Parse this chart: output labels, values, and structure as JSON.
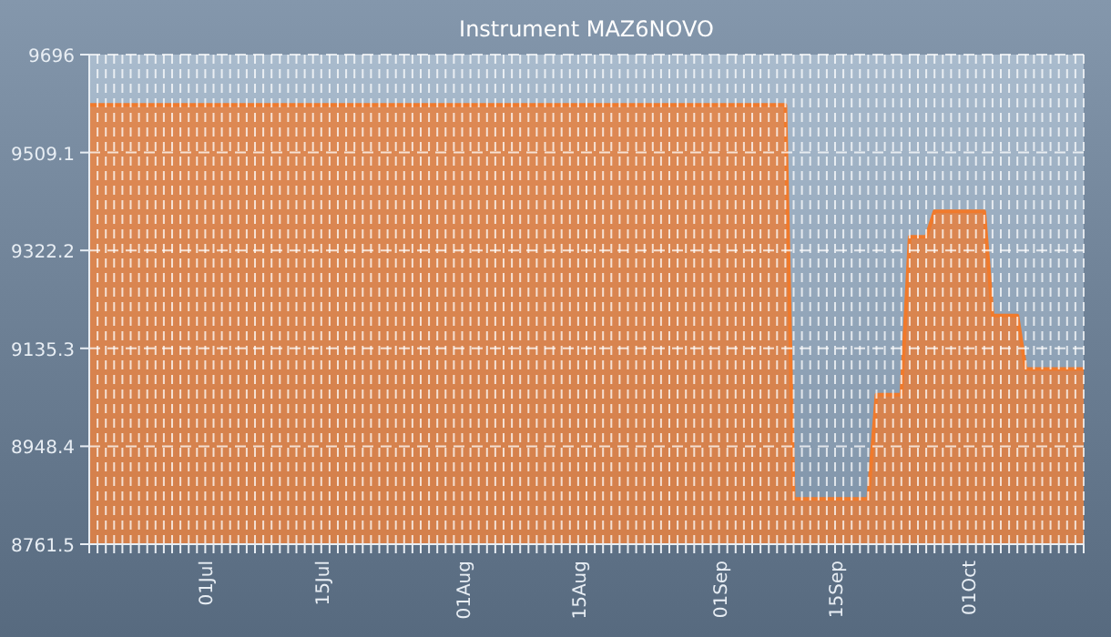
{
  "chart_data": {
    "type": "area",
    "title": "Instrument MAZ6NOVO",
    "x": [
      "--06-17",
      "--09-09",
      "--09-10",
      "--09-19",
      "--09-20",
      "--09-23",
      "--09-24",
      "--09-26",
      "--09-27",
      "--10-03",
      "--10-04",
      "--10-07",
      "--10-08",
      "--10-15"
    ],
    "series": [
      {
        "color": "#f07a2c",
        "values": [
          9600,
          9600,
          8848,
          8848,
          9047,
          9047,
          9348,
          9348,
          9397,
          9397,
          9198,
          9198,
          9096,
          9096
        ]
      }
    ],
    "xlim": [
      "--06-17",
      "--10-15"
    ],
    "ylim": [
      8761.5,
      9696
    ],
    "yticks": [
      8761.5,
      8948.4,
      9135.3,
      9322.2,
      9509.1,
      9696
    ],
    "grid": true,
    "xticks": [
      {
        "value": "--06-17",
        "label": null
      },
      {
        "value": "--06-18",
        "label": null
      },
      {
        "value": "--06-19",
        "label": null
      },
      {
        "value": "--06-20",
        "label": null
      },
      {
        "value": "--06-21",
        "label": null
      },
      {
        "value": "--06-22",
        "label": null
      },
      {
        "value": "--06-23",
        "label": null
      },
      {
        "value": "--06-24",
        "label": null
      },
      {
        "value": "--06-25",
        "label": null
      },
      {
        "value": "--06-26",
        "label": null
      },
      {
        "value": "--06-27",
        "label": null
      },
      {
        "value": "--06-28",
        "label": null
      },
      {
        "value": "--06-29",
        "label": null
      },
      {
        "value": "--06-30",
        "label": null
      },
      {
        "value": "--07-01",
        "label": "01Jul"
      },
      {
        "value": "--07-02",
        "label": null
      },
      {
        "value": "--07-03",
        "label": null
      },
      {
        "value": "--07-04",
        "label": null
      },
      {
        "value": "--07-05",
        "label": null
      },
      {
        "value": "--07-06",
        "label": null
      },
      {
        "value": "--07-07",
        "label": null
      },
      {
        "value": "--07-08",
        "label": null
      },
      {
        "value": "--07-09",
        "label": null
      },
      {
        "value": "--07-10",
        "label": null
      },
      {
        "value": "--07-11",
        "label": null
      },
      {
        "value": "--07-12",
        "label": null
      },
      {
        "value": "--07-13",
        "label": null
      },
      {
        "value": "--07-14",
        "label": null
      },
      {
        "value": "--07-15",
        "label": "15Jul"
      },
      {
        "value": "--07-16",
        "label": null
      },
      {
        "value": "--07-17",
        "label": null
      },
      {
        "value": "--07-18",
        "label": null
      },
      {
        "value": "--07-19",
        "label": null
      },
      {
        "value": "--07-20",
        "label": null
      },
      {
        "value": "--07-21",
        "label": null
      },
      {
        "value": "--07-22",
        "label": null
      },
      {
        "value": "--07-23",
        "label": null
      },
      {
        "value": "--07-24",
        "label": null
      },
      {
        "value": "--07-25",
        "label": null
      },
      {
        "value": "--07-26",
        "label": null
      },
      {
        "value": "--07-27",
        "label": null
      },
      {
        "value": "--07-28",
        "label": null
      },
      {
        "value": "--07-29",
        "label": null
      },
      {
        "value": "--07-30",
        "label": null
      },
      {
        "value": "--07-31",
        "label": null
      },
      {
        "value": "--08-01",
        "label": "01Aug"
      },
      {
        "value": "--08-02",
        "label": null
      },
      {
        "value": "--08-03",
        "label": null
      },
      {
        "value": "--08-04",
        "label": null
      },
      {
        "value": "--08-05",
        "label": null
      },
      {
        "value": "--08-06",
        "label": null
      },
      {
        "value": "--08-07",
        "label": null
      },
      {
        "value": "--08-08",
        "label": null
      },
      {
        "value": "--08-09",
        "label": null
      },
      {
        "value": "--08-10",
        "label": null
      },
      {
        "value": "--08-11",
        "label": null
      },
      {
        "value": "--08-12",
        "label": null
      },
      {
        "value": "--08-13",
        "label": null
      },
      {
        "value": "--08-14",
        "label": null
      },
      {
        "value": "--08-15",
        "label": "15Aug"
      },
      {
        "value": "--08-16",
        "label": null
      },
      {
        "value": "--08-17",
        "label": null
      },
      {
        "value": "--08-18",
        "label": null
      },
      {
        "value": "--08-19",
        "label": null
      },
      {
        "value": "--08-20",
        "label": null
      },
      {
        "value": "--08-21",
        "label": null
      },
      {
        "value": "--08-22",
        "label": null
      },
      {
        "value": "--08-23",
        "label": null
      },
      {
        "value": "--08-24",
        "label": null
      },
      {
        "value": "--08-25",
        "label": null
      },
      {
        "value": "--08-26",
        "label": null
      },
      {
        "value": "--08-27",
        "label": null
      },
      {
        "value": "--08-28",
        "label": null
      },
      {
        "value": "--08-29",
        "label": null
      },
      {
        "value": "--08-30",
        "label": null
      },
      {
        "value": "--08-31",
        "label": null
      },
      {
        "value": "--09-01",
        "label": "01Sep"
      },
      {
        "value": "--09-02",
        "label": null
      },
      {
        "value": "--09-03",
        "label": null
      },
      {
        "value": "--09-04",
        "label": null
      },
      {
        "value": "--09-05",
        "label": null
      },
      {
        "value": "--09-06",
        "label": null
      },
      {
        "value": "--09-07",
        "label": null
      },
      {
        "value": "--09-08",
        "label": null
      },
      {
        "value": "--09-09",
        "label": null
      },
      {
        "value": "--09-10",
        "label": null
      },
      {
        "value": "--09-11",
        "label": null
      },
      {
        "value": "--09-12",
        "label": null
      },
      {
        "value": "--09-13",
        "label": null
      },
      {
        "value": "--09-14",
        "label": null
      },
      {
        "value": "--09-15",
        "label": "15Sep"
      },
      {
        "value": "--09-16",
        "label": null
      },
      {
        "value": "--09-17",
        "label": null
      },
      {
        "value": "--09-18",
        "label": null
      },
      {
        "value": "--09-19",
        "label": null
      },
      {
        "value": "--09-20",
        "label": null
      },
      {
        "value": "--09-21",
        "label": null
      },
      {
        "value": "--09-22",
        "label": null
      },
      {
        "value": "--09-23",
        "label": null
      },
      {
        "value": "--09-24",
        "label": null
      },
      {
        "value": "--09-25",
        "label": null
      },
      {
        "value": "--09-26",
        "label": null
      },
      {
        "value": "--09-27",
        "label": null
      },
      {
        "value": "--09-28",
        "label": null
      },
      {
        "value": "--09-29",
        "label": null
      },
      {
        "value": "--09-30",
        "label": null
      },
      {
        "value": "--10-01",
        "label": "01Oct"
      },
      {
        "value": "--10-02",
        "label": null
      },
      {
        "value": "--10-03",
        "label": null
      },
      {
        "value": "--10-04",
        "label": null
      },
      {
        "value": "--10-05",
        "label": null
      },
      {
        "value": "--10-06",
        "label": null
      },
      {
        "value": "--10-07",
        "label": null
      },
      {
        "value": "--10-08",
        "label": null
      },
      {
        "value": "--10-09",
        "label": null
      },
      {
        "value": "--10-10",
        "label": null
      },
      {
        "value": "--10-11",
        "label": null
      },
      {
        "value": "--10-12",
        "label": null
      },
      {
        "value": "--10-13",
        "label": null
      },
      {
        "value": "--10-14",
        "label": null
      },
      {
        "value": "--10-15",
        "label": null
      }
    ]
  }
}
